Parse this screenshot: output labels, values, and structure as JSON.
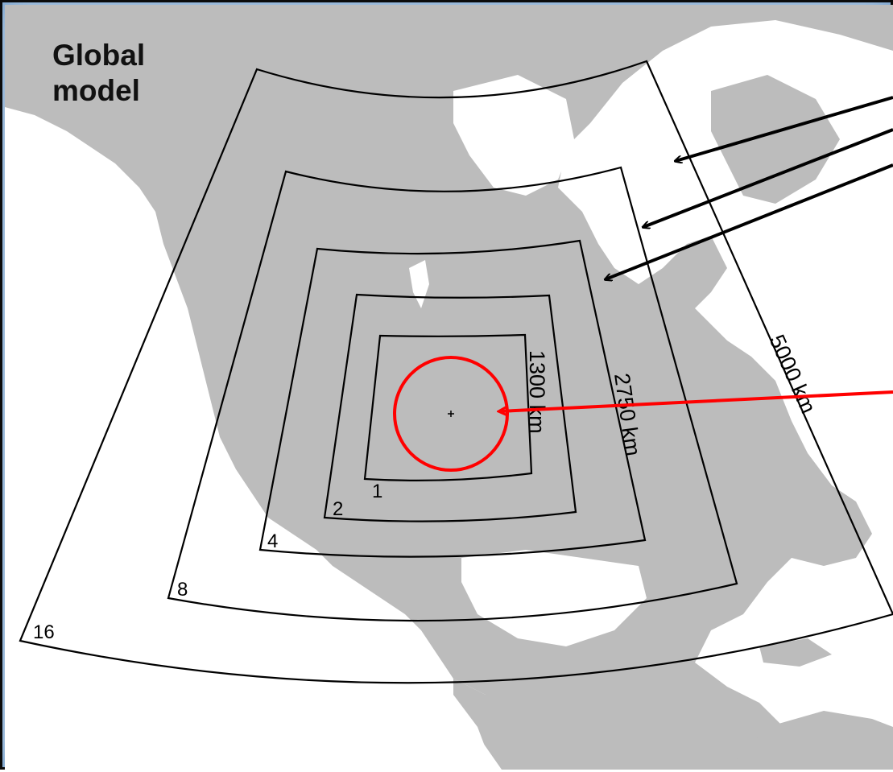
{
  "title": "Global\nmodel",
  "domains": [
    {
      "resolution_label": "1",
      "size_label": "1300 km"
    },
    {
      "resolution_label": "2",
      "size_label": ""
    },
    {
      "resolution_label": "4",
      "size_label": "2750 km"
    },
    {
      "resolution_label": "8",
      "size_label": ""
    },
    {
      "resolution_label": "16",
      "size_label": "5000 km"
    }
  ],
  "colors": {
    "land": "#bcbcbc",
    "ocean": "#ffffff",
    "outline": "#000000",
    "highlight": "#ff0000",
    "frame_glow": "#7ea6cf"
  }
}
